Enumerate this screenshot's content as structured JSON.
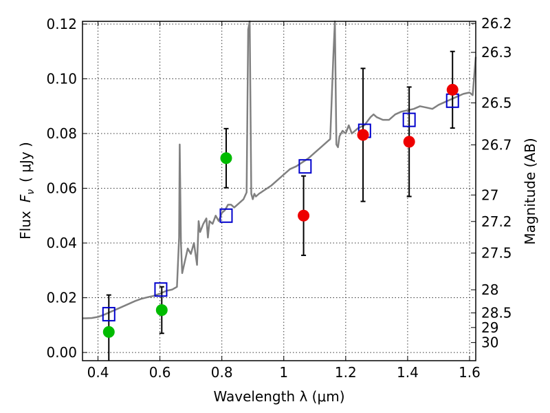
{
  "chart_data": {
    "type": "scatter",
    "title": "",
    "xlabel": "Wavelength  λ (μm)",
    "ylabel_prefix": "Flux",
    "ylabel_var": "F",
    "ylabel_sub": "ν",
    "ylabel_unit": "( μJy )",
    "y2label": "Magnitude (AB)",
    "xlim": [
      0.35,
      1.62
    ],
    "ylim": [
      -0.003,
      0.121
    ],
    "grid": true,
    "x_ticks": [
      0.4,
      0.6,
      0.8,
      1.0,
      1.2,
      1.4,
      1.6
    ],
    "x_tick_labels": [
      "0.4",
      "0.6",
      "0.8",
      "1",
      "1.2",
      "1.4",
      "1.6"
    ],
    "y_ticks": [
      0.0,
      0.02,
      0.04,
      0.06,
      0.08,
      0.1,
      0.12
    ],
    "y_tick_labels": [
      "0.00",
      "0.02",
      "0.04",
      "0.06",
      "0.08",
      "0.10",
      "0.12"
    ],
    "y2_ticks": [
      26.2,
      26.3,
      26.5,
      26.7,
      27,
      27.2,
      27.5,
      28,
      28.5,
      29,
      30
    ],
    "y2_tick_labels": [
      "26.2",
      "26.3",
      "26.5",
      "26.7",
      "27",
      "27.2",
      "27.5",
      "28",
      "28.5",
      "29",
      "30"
    ],
    "series": [
      {
        "kind": "spectrum",
        "color": "#808080",
        "x": [
          0.35,
          0.36,
          0.38,
          0.4,
          0.42,
          0.44,
          0.46,
          0.48,
          0.5,
          0.52,
          0.54,
          0.56,
          0.58,
          0.6,
          0.62,
          0.64,
          0.655,
          0.662,
          0.664,
          0.668,
          0.672,
          0.68,
          0.69,
          0.7,
          0.71,
          0.72,
          0.725,
          0.73,
          0.74,
          0.75,
          0.755,
          0.76,
          0.77,
          0.78,
          0.79,
          0.8,
          0.81,
          0.82,
          0.83,
          0.84,
          0.85,
          0.86,
          0.87,
          0.88,
          0.885,
          0.89,
          0.895,
          0.9,
          0.905,
          0.91,
          0.92,
          0.94,
          0.96,
          0.98,
          1.0,
          1.02,
          1.04,
          1.06,
          1.08,
          1.1,
          1.12,
          1.14,
          1.15,
          1.16,
          1.165,
          1.17,
          1.175,
          1.18,
          1.19,
          1.2,
          1.21,
          1.22,
          1.24,
          1.26,
          1.28,
          1.29,
          1.3,
          1.32,
          1.34,
          1.36,
          1.38,
          1.4,
          1.42,
          1.44,
          1.46,
          1.48,
          1.5,
          1.52,
          1.54,
          1.55,
          1.56,
          1.58,
          1.6,
          1.61,
          1.62
        ],
        "y": [
          0.0125,
          0.0125,
          0.0126,
          0.013,
          0.0138,
          0.0148,
          0.0158,
          0.0168,
          0.0178,
          0.0188,
          0.0196,
          0.0202,
          0.0207,
          0.0215,
          0.0225,
          0.023,
          0.024,
          0.042,
          0.076,
          0.04,
          0.029,
          0.033,
          0.038,
          0.036,
          0.04,
          0.032,
          0.048,
          0.044,
          0.047,
          0.049,
          0.042,
          0.048,
          0.047,
          0.05,
          0.048,
          0.051,
          0.052,
          0.054,
          0.054,
          0.053,
          0.054,
          0.055,
          0.056,
          0.0585,
          0.118,
          0.121,
          0.058,
          0.056,
          0.058,
          0.057,
          0.058,
          0.0595,
          0.061,
          0.063,
          0.065,
          0.067,
          0.068,
          0.0695,
          0.071,
          0.073,
          0.075,
          0.077,
          0.078,
          0.108,
          0.121,
          0.076,
          0.075,
          0.079,
          0.081,
          0.08,
          0.083,
          0.08,
          0.082,
          0.083,
          0.086,
          0.087,
          0.086,
          0.085,
          0.085,
          0.087,
          0.088,
          0.0885,
          0.089,
          0.09,
          0.0895,
          0.089,
          0.0905,
          0.0915,
          0.0925,
          0.093,
          0.0935,
          0.0945,
          0.095,
          0.094,
          0.108
        ]
      },
      {
        "kind": "model_points",
        "color": "#0000cc",
        "marker": "open-square",
        "x": [
          0.435,
          0.603,
          0.814,
          1.069,
          1.261,
          1.405,
          1.545
        ],
        "y": [
          0.014,
          0.023,
          0.05,
          0.068,
          0.081,
          0.085,
          0.092
        ]
      },
      {
        "kind": "detections",
        "color": "#00bb00",
        "marker": "filled-circle",
        "x": [
          0.435,
          0.606,
          0.814
        ],
        "y": [
          0.0075,
          0.0155,
          0.071
        ],
        "yerr": [
          0.0135,
          0.0085,
          0.0108
        ]
      },
      {
        "kind": "detections",
        "color": "#ee0000",
        "marker": "filled-circle",
        "x": [
          1.064,
          1.256,
          1.405,
          1.545
        ],
        "y": [
          0.05,
          0.0795,
          0.077,
          0.096
        ],
        "yerr": [
          0.0145,
          0.0243,
          0.02,
          0.014
        ]
      }
    ]
  }
}
